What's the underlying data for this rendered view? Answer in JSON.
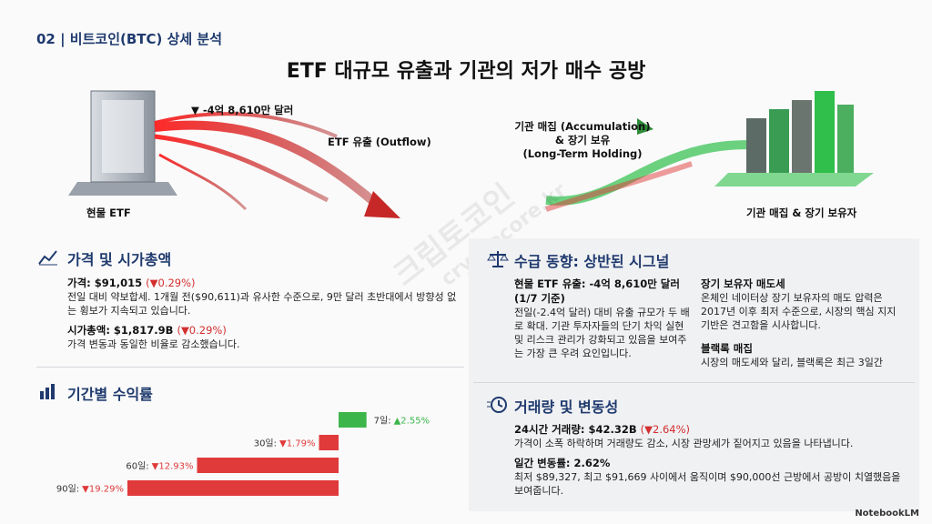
{
  "header": {
    "section": "02 | 비트코인(BTC) 상세 분석",
    "title": "ETF 대규모 유출과 기관의 저가 매수 공방"
  },
  "illustration": {
    "outflow_amount": "▼ -4억 8,610만 달러",
    "outflow_label": "ETF 유출 (Outflow)",
    "etf_label": "현물 ETF",
    "accumulation_lines": [
      "기관 매집 (Accumulation)",
      "& 장기 보유",
      "(Long-Term Holding)"
    ],
    "holder_label": "기관 매집 & 장기 보유자"
  },
  "watermark": [
    "크립토코인",
    "cryptocore.kr"
  ],
  "price_section": {
    "heading": "가격 및 시가총액",
    "items": [
      {
        "label": "가격: $91,015",
        "change": "(▼0.29%)",
        "body": "전일 대비 약보합세. 1개월 전($90,611)과 유사한 수준으로, 9만 달러 초반대에서 방향성 없는 횡보가 지속되고 있습니다."
      },
      {
        "label": "시가총액: $1,817.9B",
        "change": "(▼0.29%)",
        "body": "가격 변동과 동일한 비율로 감소했습니다."
      }
    ]
  },
  "chart_data": {
    "type": "bar",
    "orientation": "horizontal",
    "title": "기간별 수익률",
    "categories": [
      "7일:",
      "30일:",
      "60일:",
      "90일:"
    ],
    "values": [
      2.55,
      -1.79,
      -12.93,
      -19.29
    ],
    "value_labels": [
      "▲2.55%",
      "▼1.79%",
      "▼12.93%",
      "▼19.29%"
    ],
    "colors": [
      "#3cb54a",
      "#e03a3a",
      "#e03a3a",
      "#e03a3a"
    ]
  },
  "flow_section": {
    "heading": "수급 동향: 상반된 시그널",
    "left": {
      "title": "현물 ETF 유출: -4억 8,610만 달러 (1/7 기준)",
      "body": "전일(-2.4억 달러) 대비 유출 규모가 두 배로 확대. 기관 투자자들의 단기 차익 실현 및 리스크 관리가 강화되고 있음을 보여주는 가장 큰 우려 요인입니다."
    },
    "right": [
      {
        "title": "장기 보유자 매도세",
        "body": "온체인 네이터상 장기 보유자의 매도 압력은 2017년 이후 최저 수준으로, 시장의 핵심 지지 기반은 견고함을 시사합니다."
      },
      {
        "title": "블랙록 매집",
        "body": "시장의 매도세와 달리, 블랙록은 최근 3일간"
      }
    ]
  },
  "volume_section": {
    "heading": "거래량 및 변동성",
    "items": [
      {
        "label": "24시간 거래량: $42.32B",
        "change": "(▼2.64%)",
        "body": "가격이 소폭 하락하며 거래량도 감소, 시장 관망세가 짙어지고 있음을 나타냅니다."
      },
      {
        "label": "일간 변동률: 2.62%",
        "change": null,
        "body": "최저 $89,327, 최고 $91,669 사이에서 움직이며 $90,000선 근방에서 공방이 치열했음을 보여줍니다."
      }
    ]
  },
  "footer": {
    "brand": "NotebookLM"
  }
}
